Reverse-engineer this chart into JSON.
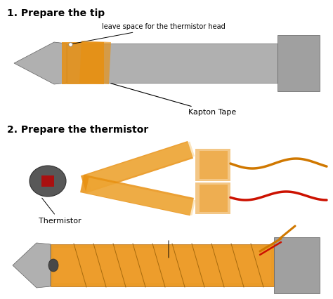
{
  "title1": "1. Prepare the tip",
  "title2": "2. Prepare the thermistor",
  "label_kapton": "Kapton Tape",
  "label_thermistor": "Thermistor",
  "label_tip_note": "leave space for the thermistor head",
  "bg_color": "#ffffff",
  "gray_color": "#b0b0b0",
  "dark_gray": "#606060",
  "orange_color": "#e89010",
  "orange_alpha": 0.75,
  "red_color": "#cc1100",
  "thermistor_body": "#606060",
  "thermistor_chip": "#aa1010",
  "title_fontsize": 10,
  "annotation_fontsize": 7
}
